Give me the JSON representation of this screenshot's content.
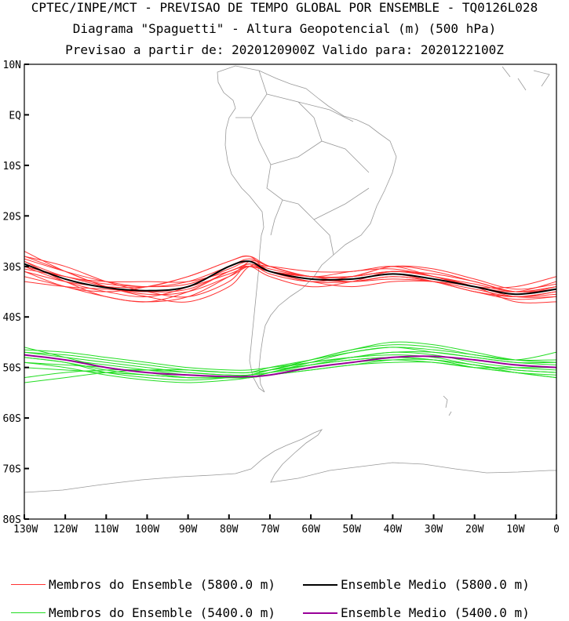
{
  "titles": {
    "line1": "CPTEC/INPE/MCT - PREVISAO DE TEMPO GLOBAL POR ENSEMBLE - TQ0126L028",
    "line2": "Diagrama \"Spaguetti\" - Altura Geopotencial (m) (500 hPa)",
    "line3": "Previsao a partir de: 2020120900Z  Valido para: 2020122100Z"
  },
  "axes": {
    "lat_labels": [
      "10N",
      "EQ",
      "10S",
      "20S",
      "30S",
      "40S",
      "50S",
      "60S",
      "70S",
      "80S"
    ],
    "lat_values": [
      10,
      0,
      -10,
      -20,
      -30,
      -40,
      -50,
      -60,
      -70,
      -80
    ],
    "lon_labels": [
      "130W",
      "120W",
      "110W",
      "100W",
      "90W",
      "80W",
      "70W",
      "60W",
      "50W",
      "40W",
      "30W",
      "20W",
      "10W",
      "0"
    ],
    "lon_values": [
      -130,
      -120,
      -110,
      -100,
      -90,
      -80,
      -70,
      -60,
      -50,
      -40,
      -30,
      -20,
      -10,
      0
    ],
    "lon_range": [
      -130,
      0
    ],
    "lat_range": [
      -80,
      10
    ]
  },
  "colors": {
    "members_5800": "#ff3333",
    "mean_5800": "#000000",
    "members_5400": "#22dd22",
    "mean_5400": "#990099",
    "coast": "#999999"
  },
  "legend": [
    {
      "label": "Membros do Ensemble (5800.0 m)",
      "color": "#ff3333",
      "width": 1
    },
    {
      "label": "Ensemble Medio (5800.0 m)",
      "color": "#000000",
      "width": 2
    },
    {
      "label": "Membros do Ensemble (5400.0 m)",
      "color": "#22dd22",
      "width": 1
    },
    {
      "label": "Ensemble Medio (5400.0 m)",
      "color": "#990099",
      "width": 2
    }
  ],
  "chart_data": {
    "type": "line",
    "x_unit": "longitude (deg E, negative = W)",
    "y_unit": "latitude (deg, negative = S)",
    "lon": [
      -130,
      -120,
      -110,
      -100,
      -90,
      -80,
      -75,
      -70,
      -60,
      -50,
      -40,
      -30,
      -20,
      -10,
      0
    ],
    "mean_5800": [
      -29.5,
      -32.5,
      -34.2,
      -34.8,
      -34.0,
      -30.0,
      -29.0,
      -31.0,
      -32.5,
      -32.5,
      -31.5,
      -32.5,
      -34.0,
      -35.5,
      -34.5
    ],
    "mean_5400": [
      -47.5,
      -48.5,
      -50.0,
      -51.0,
      -51.5,
      -51.8,
      -51.8,
      -51.5,
      -50.0,
      -49.0,
      -48.0,
      -47.8,
      -48.5,
      -49.5,
      -50.0
    ],
    "members_5800": [
      [
        -28,
        -30,
        -33,
        -35,
        -36,
        -33,
        -29,
        -30,
        -32,
        -32,
        -30,
        -31,
        -33,
        -35,
        -34
      ],
      [
        -30,
        -33,
        -35,
        -36,
        -34,
        -30,
        -29,
        -31,
        -33,
        -33,
        -32,
        -33,
        -35,
        -36,
        -35
      ],
      [
        -27,
        -31,
        -34,
        -36,
        -37,
        -34,
        -30,
        -30,
        -31,
        -31,
        -30,
        -32,
        -34,
        -35,
        -33
      ],
      [
        -31,
        -34,
        -35,
        -34,
        -32,
        -29,
        -28,
        -31,
        -33,
        -34,
        -33,
        -33,
        -34,
        -36,
        -36
      ],
      [
        -29,
        -32,
        -33,
        -33,
        -33,
        -31,
        -29.5,
        -31,
        -32,
        -32,
        -31,
        -31.5,
        -33,
        -35,
        -34.5
      ],
      [
        -32,
        -34,
        -36,
        -37,
        -35,
        -31,
        -30,
        -32,
        -34,
        -33,
        -31,
        -32,
        -34,
        -37,
        -37
      ],
      [
        -28.5,
        -31,
        -33,
        -34,
        -33,
        -30,
        -28.5,
        -30,
        -32,
        -31,
        -30.5,
        -32,
        -34,
        -34,
        -32
      ],
      [
        -30,
        -32,
        -34,
        -35,
        -34.5,
        -31,
        -30,
        -31,
        -32,
        -33,
        -32,
        -33,
        -35,
        -36,
        -35.5
      ],
      [
        -31,
        -33,
        -34,
        -34,
        -32,
        -29,
        -28,
        -30,
        -32,
        -32,
        -31,
        -32,
        -33.5,
        -35,
        -34
      ],
      [
        -29,
        -33,
        -36,
        -37,
        -36,
        -32,
        -29.5,
        -31.5,
        -33,
        -32,
        -30,
        -30.5,
        -32.5,
        -34.5,
        -33.5
      ],
      [
        -33,
        -34,
        -34.5,
        -35,
        -34,
        -31.5,
        -30,
        -31,
        -32.5,
        -33,
        -32.5,
        -33,
        -34.5,
        -36,
        -35
      ],
      [
        -30.5,
        -32,
        -33.5,
        -34,
        -33.5,
        -30.5,
        -29,
        -30.5,
        -32,
        -32,
        -31,
        -32,
        -34,
        -35.5,
        -34
      ],
      [
        -28,
        -31,
        -34,
        -35.5,
        -35,
        -32,
        -30,
        -31,
        -32.5,
        -32.5,
        -31.5,
        -33,
        -35,
        -36.5,
        -36
      ]
    ],
    "members_5400": [
      [
        -46,
        -48,
        -50,
        -51,
        -52,
        -52,
        -52,
        -51,
        -49,
        -47,
        -46,
        -47,
        -48,
        -49,
        -49
      ],
      [
        -48,
        -49,
        -51,
        -52,
        -52.5,
        -52,
        -51.5,
        -50.5,
        -49,
        -48,
        -47.5,
        -48,
        -49.5,
        -50.5,
        -51
      ],
      [
        -47,
        -47.5,
        -48.5,
        -49.5,
        -50.5,
        -51,
        -51,
        -50,
        -48.5,
        -47,
        -46,
        -46.5,
        -47.5,
        -48.5,
        -48.5
      ],
      [
        -49,
        -50,
        -51.5,
        -52.5,
        -53,
        -52.5,
        -52,
        -51,
        -49.5,
        -48.5,
        -48,
        -48.5,
        -50,
        -51,
        -52
      ],
      [
        -46.5,
        -47,
        -48,
        -49,
        -50,
        -50.5,
        -50.5,
        -50,
        -49,
        -48,
        -47,
        -47,
        -48,
        -49,
        -49.5
      ],
      [
        -48,
        -49,
        -50.5,
        -51.5,
        -52,
        -52,
        -51.5,
        -50.5,
        -48.5,
        -46.5,
        -45,
        -45.5,
        -47,
        -48.5,
        -49
      ],
      [
        -50,
        -50.5,
        -51,
        -51.5,
        -52,
        -52,
        -52,
        -51.5,
        -50.5,
        -49.5,
        -49,
        -49,
        -50,
        -51,
        -51.5
      ],
      [
        -47.5,
        -48.5,
        -49.5,
        -50.5,
        -51.5,
        -52,
        -52,
        -51,
        -49.5,
        -48,
        -47,
        -47.5,
        -49,
        -50,
        -50.5
      ],
      [
        -52,
        -51,
        -50.5,
        -50.5,
        -51,
        -51.5,
        -51.5,
        -51,
        -50,
        -49,
        -48.5,
        -49,
        -50,
        -50,
        -50
      ],
      [
        -47,
        -48,
        -49,
        -50,
        -51,
        -51.5,
        -51.5,
        -50.5,
        -48.5,
        -46.5,
        -45.5,
        -46,
        -47.5,
        -48.5,
        -47
      ],
      [
        -49,
        -49.5,
        -50,
        -51,
        -51.5,
        -52,
        -52,
        -51.5,
        -50.5,
        -49.5,
        -48.5,
        -48.5,
        -49.5,
        -50.5,
        -51
      ],
      [
        -53,
        -52,
        -51,
        -50.5,
        -50.5,
        -51,
        -51,
        -50.5,
        -49.5,
        -48.5,
        -48,
        -48.5,
        -49.5,
        -51,
        -52
      ]
    ],
    "xlim": [
      -130,
      0
    ],
    "ylim": [
      -80,
      10
    ],
    "grid": false
  }
}
